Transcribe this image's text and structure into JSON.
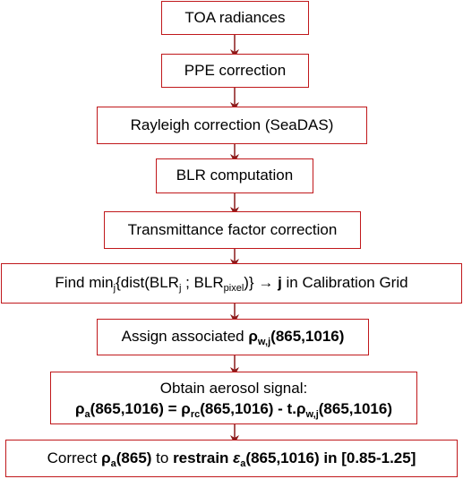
{
  "steps": {
    "toa": {
      "label": "TOA radiances"
    },
    "ppe": {
      "label": "PPE correction"
    },
    "rayleigh": {
      "label": "Rayleigh correction (SeaDAS)"
    },
    "blr": {
      "label": "BLR computation"
    },
    "transmittance": {
      "label": "Transmittance factor correction"
    },
    "find": {
      "prefix": "Find min",
      "min_sub": "j",
      "open": "{dist(BLR",
      "sub_j": "j",
      "sep": " ; BLR",
      "sub_pixel": "pixel",
      "close": ")} → ",
      "bold_j": "j",
      "suffix": " in Calibration Grid"
    },
    "assign": {
      "prefix": "Assign associated ",
      "rho": "ρ",
      "sub": "w,j",
      "suffix": "(865,1016)"
    },
    "aerosol": {
      "line1": "Obtain aerosol signal:",
      "rho_a": "ρ",
      "sub_a": "a",
      "part1": "(865,1016) = ",
      "rho_rc": "ρ",
      "sub_rc": "rc",
      "part2": "(865,1016) - t.",
      "rho_w": "ρ",
      "sub_w": "w,j",
      "part3": "(865,1016)"
    },
    "correct": {
      "prefix": "Correct ",
      "rho": "ρ",
      "sub_a": "a",
      "band": "(865)",
      "to": " to ",
      "restrain": "restrain ",
      "eps": "ε",
      "sub_eps": "a",
      "range": "(865,1016) in [0.85-1.25]"
    }
  },
  "colors": {
    "border": "#c0181b",
    "arrow": "#8b1a1a"
  }
}
